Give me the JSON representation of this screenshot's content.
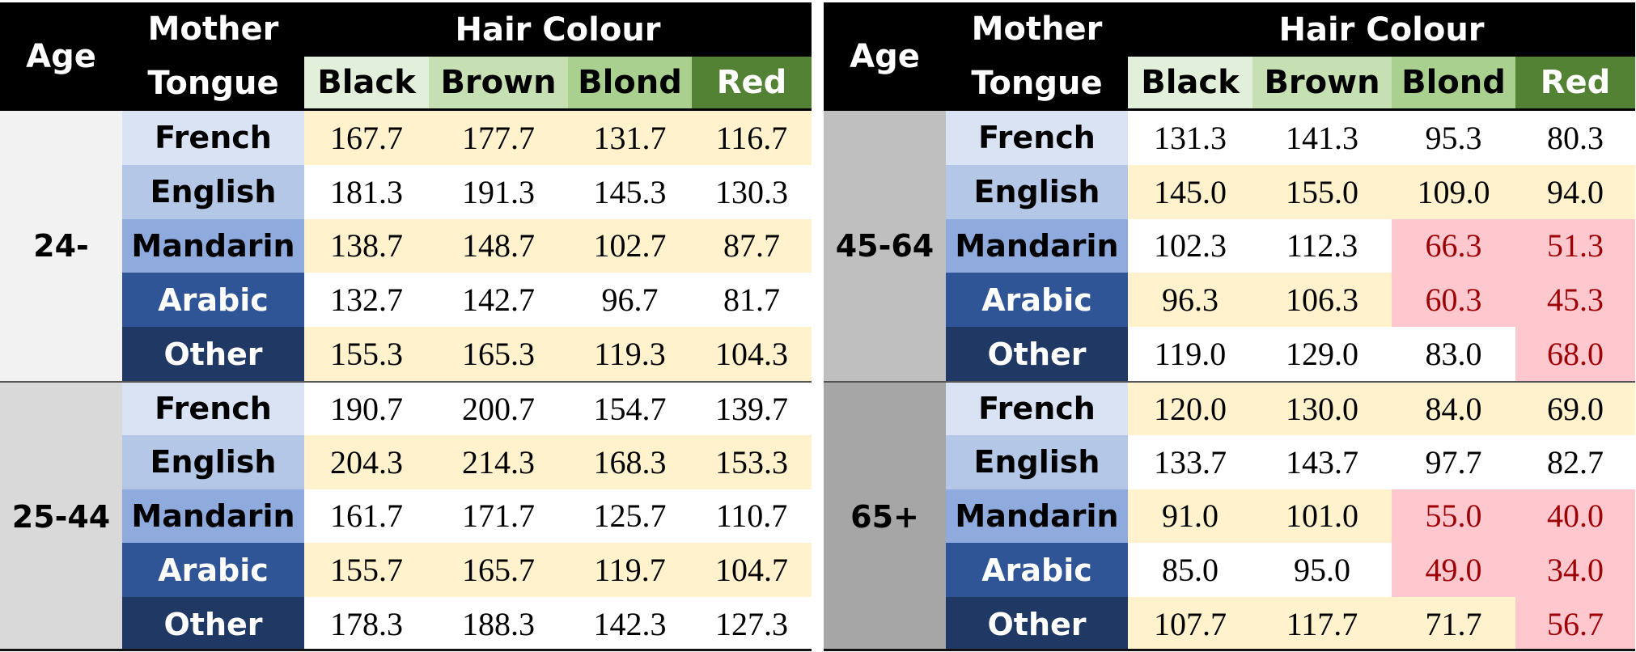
{
  "headers": {
    "age": "Age",
    "tongue_line1": "Mother",
    "tongue_line2": "Tongue",
    "hair": "Hair Colour",
    "colours": [
      "Black",
      "Brown",
      "Blond",
      "Red"
    ]
  },
  "colors": {
    "header_bg": "#000000",
    "black_bg": "#e2efda",
    "brown_bg": "#c6e0b4",
    "blond_bg": "#a9d08e",
    "red_bg": "#548235",
    "band_bg": "#fff2cc",
    "low_bg": "#ffc7ce",
    "low_text": "#9c0006"
  },
  "left": {
    "groups": [
      {
        "age": "24-",
        "rows": [
          {
            "tongue": "French",
            "values": [
              "167.7",
              "177.7",
              "131.7",
              "116.7"
            ]
          },
          {
            "tongue": "English",
            "values": [
              "181.3",
              "191.3",
              "145.3",
              "130.3"
            ]
          },
          {
            "tongue": "Mandarin",
            "values": [
              "138.7",
              "148.7",
              "102.7",
              "87.7"
            ]
          },
          {
            "tongue": "Arabic",
            "values": [
              "132.7",
              "142.7",
              "96.7",
              "81.7"
            ]
          },
          {
            "tongue": "Other",
            "values": [
              "155.3",
              "165.3",
              "119.3",
              "104.3"
            ]
          }
        ]
      },
      {
        "age": "25-44",
        "rows": [
          {
            "tongue": "French",
            "values": [
              "190.7",
              "200.7",
              "154.7",
              "139.7"
            ]
          },
          {
            "tongue": "English",
            "values": [
              "204.3",
              "214.3",
              "168.3",
              "153.3"
            ]
          },
          {
            "tongue": "Mandarin",
            "values": [
              "161.7",
              "171.7",
              "125.7",
              "110.7"
            ]
          },
          {
            "tongue": "Arabic",
            "values": [
              "155.7",
              "165.7",
              "119.7",
              "104.7"
            ]
          },
          {
            "tongue": "Other",
            "values": [
              "178.3",
              "188.3",
              "142.3",
              "127.3"
            ]
          }
        ]
      }
    ]
  },
  "right": {
    "groups": [
      {
        "age": "45-64",
        "rows": [
          {
            "tongue": "French",
            "values": [
              "131.3",
              "141.3",
              "95.3",
              "80.3"
            ]
          },
          {
            "tongue": "English",
            "values": [
              "145.0",
              "155.0",
              "109.0",
              "94.0"
            ]
          },
          {
            "tongue": "Mandarin",
            "values": [
              "102.3",
              "112.3",
              "66.3",
              "51.3"
            ]
          },
          {
            "tongue": "Arabic",
            "values": [
              "96.3",
              "106.3",
              "60.3",
              "45.3"
            ]
          },
          {
            "tongue": "Other",
            "values": [
              "119.0",
              "129.0",
              "83.0",
              "68.0"
            ]
          }
        ]
      },
      {
        "age": "65+",
        "rows": [
          {
            "tongue": "French",
            "values": [
              "120.0",
              "130.0",
              "84.0",
              "69.0"
            ]
          },
          {
            "tongue": "English",
            "values": [
              "133.7",
              "143.7",
              "97.7",
              "82.7"
            ]
          },
          {
            "tongue": "Mandarin",
            "values": [
              "91.0",
              "101.0",
              "55.0",
              "40.0"
            ]
          },
          {
            "tongue": "Arabic",
            "values": [
              "85.0",
              "95.0",
              "49.0",
              "34.0"
            ]
          },
          {
            "tongue": "Other",
            "values": [
              "107.7",
              "117.7",
              "71.7",
              "56.7"
            ]
          }
        ]
      }
    ]
  }
}
